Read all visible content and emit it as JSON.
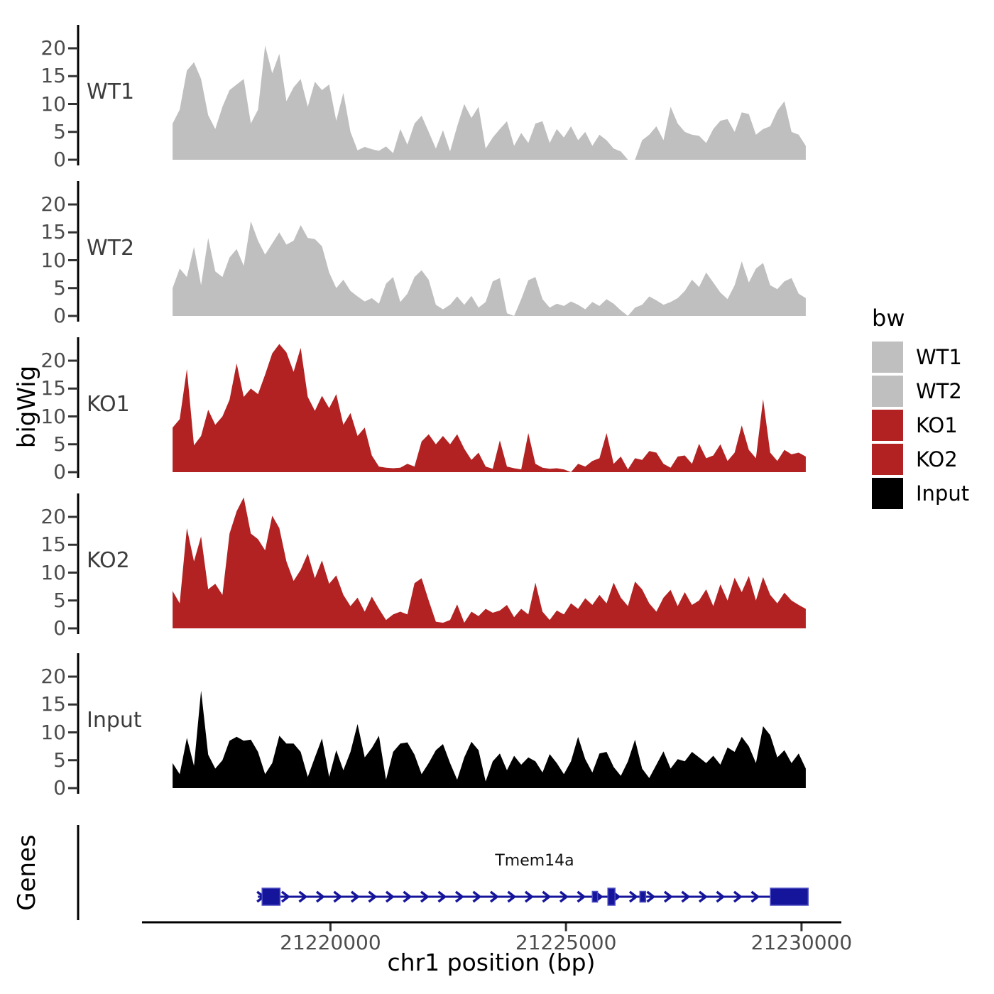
{
  "figure": {
    "y_axis_title": "bigWig",
    "genes_axis_title": "Genes",
    "x_axis_title": "chr1 position (bp)"
  },
  "legend": {
    "title": "bw",
    "items": [
      {
        "label": "WT1",
        "color": "#bfbfbf"
      },
      {
        "label": "WT2",
        "color": "#bfbfbf"
      },
      {
        "label": "KO1",
        "color": "#b22222"
      },
      {
        "label": "KO2",
        "color": "#b22222"
      },
      {
        "label": "Input",
        "color": "#000000"
      }
    ]
  },
  "chart_data": {
    "type": "area",
    "title": "",
    "xlabel": "chr1 position (bp)",
    "ylabel": "bigWig",
    "x_ticks": [
      21220000,
      21225000,
      21230000
    ],
    "x_tick_labels": [
      "21220000",
      "21225000",
      "21230000"
    ],
    "y_ticks": [
      0,
      5,
      10,
      15,
      20
    ],
    "ylim": [
      0,
      24
    ],
    "xlim": [
      21216000,
      21230900
    ],
    "grid": false,
    "legend_position": "right",
    "x_start": 21216650,
    "x_end": 21230090,
    "series": [
      {
        "name": "WT1",
        "color": "#bfbfbf",
        "values": [
          6.5,
          9,
          16,
          17.5,
          14.5,
          8,
          5.5,
          9.5,
          12.5,
          13.5,
          14.5,
          6.5,
          9,
          20.5,
          15.5,
          19,
          10.5,
          13,
          14.5,
          9.5,
          14,
          12.5,
          13.5,
          7,
          12,
          5,
          1.7,
          2.3,
          1.9,
          1.6,
          2.4,
          1.2,
          5.5,
          2.7,
          6.5,
          7.9,
          5,
          2,
          5.3,
          1.5,
          6,
          10,
          7.5,
          9.5,
          2,
          4,
          5.5,
          6.9,
          2.5,
          4.8,
          3,
          6.5,
          6.9,
          3,
          5.5,
          4,
          6,
          3.5,
          5,
          2.5,
          4.5,
          3.5,
          2,
          1.5,
          0,
          0,
          3.5,
          4.5,
          6,
          3.5,
          9.5,
          6.5,
          5,
          4.5,
          4.3,
          3,
          5.5,
          7,
          7.3,
          5,
          8.5,
          8.2,
          4.5,
          5.5,
          6,
          8.8,
          10.5,
          5,
          4.5,
          2.5
        ]
      },
      {
        "name": "WT2",
        "color": "#bfbfbf",
        "values": [
          5,
          8.5,
          7,
          12.4,
          5.5,
          14,
          8,
          7,
          10.5,
          12,
          9,
          17,
          13.5,
          11,
          13,
          15,
          12.8,
          13.5,
          16.3,
          14,
          13.8,
          12.5,
          7.8,
          5,
          6.5,
          4.5,
          3.5,
          2.6,
          3.2,
          2.2,
          5.8,
          7,
          2.5,
          4,
          7,
          8.2,
          6.5,
          2,
          1.2,
          2,
          3.5,
          2,
          3.6,
          1.5,
          2.5,
          6.2,
          6.8,
          0.5,
          0,
          3,
          6.4,
          7,
          3,
          1.5,
          2.2,
          1.8,
          2.6,
          2,
          1.2,
          2.5,
          1.8,
          3,
          2.2,
          1,
          0,
          1.5,
          2,
          3.5,
          2.8,
          2,
          2.5,
          3.2,
          4.5,
          6.5,
          5.2,
          7.8,
          6,
          4.2,
          3,
          5.5,
          9.8,
          6,
          8.5,
          9.5,
          5.5,
          4.8,
          6.2,
          6.8,
          4,
          3.2
        ]
      },
      {
        "name": "KO1",
        "color": "#b22222",
        "values": [
          8,
          9.5,
          18.5,
          4.8,
          6.5,
          11.2,
          8.5,
          10,
          13,
          19.5,
          13.5,
          15,
          14,
          17.5,
          21.3,
          23,
          21.5,
          18,
          22.3,
          13.5,
          11,
          13.7,
          11.5,
          14,
          8.5,
          10.6,
          6.5,
          8,
          3,
          1,
          0.8,
          0.7,
          0.8,
          1.5,
          1,
          5.5,
          6.8,
          5,
          6.5,
          5,
          6.8,
          4.2,
          2.2,
          3.5,
          1,
          0.6,
          5.7,
          1,
          0.7,
          0.5,
          7,
          1.5,
          0.8,
          0.6,
          0.7,
          0.5,
          0,
          1.5,
          1,
          2,
          2.5,
          7,
          1.5,
          2.8,
          0.5,
          2.5,
          2.2,
          3.8,
          3.5,
          1.5,
          0.8,
          2.8,
          3,
          1.5,
          5.1,
          2.5,
          3,
          5,
          2,
          3.5,
          8.4,
          4,
          2.5,
          13.1,
          3.5,
          2,
          4,
          3.2,
          3.5,
          2.8
        ]
      },
      {
        "name": "KO2",
        "color": "#b22222",
        "values": [
          6.7,
          4.5,
          18,
          12,
          16.5,
          7,
          8,
          6,
          17,
          21,
          23.5,
          17,
          16,
          14,
          20.2,
          18,
          12,
          8.5,
          10.5,
          13.4,
          9,
          12.2,
          8,
          9.5,
          6,
          4,
          5.5,
          3,
          5.7,
          3.5,
          1.5,
          2.5,
          3,
          2.5,
          8.1,
          9,
          5,
          1.2,
          1,
          1.5,
          4.3,
          1,
          3,
          2.2,
          3.5,
          2.8,
          3.2,
          4.2,
          2,
          3.5,
          2.5,
          8.2,
          3,
          1.5,
          3.2,
          2.5,
          4.5,
          3.5,
          5.4,
          4.2,
          6,
          4.5,
          8.2,
          5.5,
          4,
          8.4,
          7,
          4.5,
          3,
          5.5,
          6.9,
          4,
          6.5,
          4.2,
          5,
          7,
          4,
          7.9,
          5,
          9.1,
          6.5,
          9.4,
          5,
          9.2,
          6,
          4.5,
          6.4,
          5,
          4.2,
          3.5
        ]
      },
      {
        "name": "Input",
        "color": "#000000",
        "values": [
          4.5,
          2.5,
          9,
          4,
          17.5,
          6,
          3.5,
          5,
          8.5,
          9.2,
          8.5,
          8.7,
          6.5,
          2.5,
          4.5,
          9.4,
          8,
          8,
          6.5,
          2,
          5.5,
          8.9,
          2,
          6.8,
          3.2,
          6.5,
          11.5,
          5.5,
          7.2,
          9.4,
          1.5,
          6.5,
          8,
          8.2,
          6,
          2.5,
          4.5,
          6.8,
          7.9,
          4.5,
          1.5,
          5.5,
          8.3,
          6.8,
          1.2,
          4.8,
          6.2,
          3.2,
          5.8,
          4.2,
          5.5,
          4.8,
          2.8,
          6.1,
          4.5,
          2.5,
          4.8,
          9.2,
          5.2,
          2.8,
          6.2,
          6.5,
          3.8,
          2.2,
          4.8,
          8.7,
          3.5,
          1.8,
          4.2,
          6.6,
          3.5,
          5.2,
          4.8,
          6.5,
          5.5,
          4.5,
          5.8,
          4.2,
          7.3,
          6.5,
          9.2,
          7.5,
          4.5,
          11.1,
          9.5,
          5.5,
          6.8,
          4.5,
          6.2,
          3.5
        ]
      }
    ],
    "gene_track": {
      "axis_label": "Genes",
      "gene_name": "Tmem14a",
      "strand": "+",
      "color": "#15159b",
      "line_start": 21218460,
      "line_end": 21230140,
      "exons": [
        {
          "start": 21218550,
          "end": 21218930,
          "type": "thick"
        },
        {
          "start": 21225560,
          "end": 21225670,
          "type": "thin"
        },
        {
          "start": 21225890,
          "end": 21226040,
          "type": "thick"
        },
        {
          "start": 21226570,
          "end": 21226690,
          "type": "thin"
        },
        {
          "start": 21229340,
          "end": 21230140,
          "type": "thick"
        }
      ]
    }
  }
}
